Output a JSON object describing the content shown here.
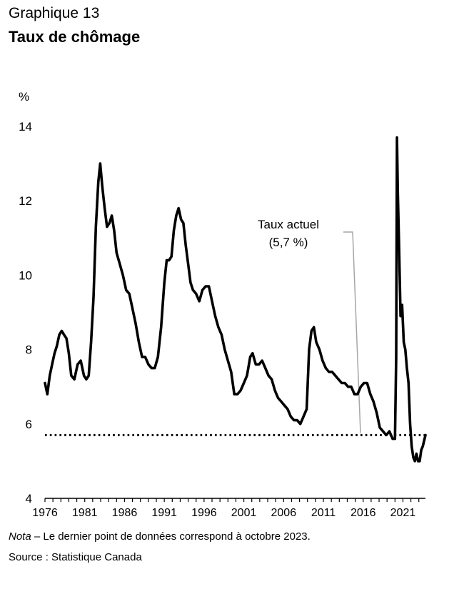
{
  "header": {
    "kicker": "Graphique 13",
    "title": "Taux de chômage"
  },
  "footer": {
    "note_label": "Nota",
    "note_text": " – Le dernier point de données correspond à octobre 2023.",
    "source": "Source : Statistique Canada"
  },
  "chart_data": {
    "type": "line",
    "ylabel": "%",
    "ylim": [
      4,
      14
    ],
    "yticks": [
      4,
      6,
      8,
      10,
      12,
      14
    ],
    "xlim": [
      1976.0,
      2023.83
    ],
    "xticks": [
      1976,
      1981,
      1986,
      1991,
      1996,
      2001,
      2006,
      2011,
      2016,
      2021
    ],
    "grid": false,
    "reference_line": {
      "value": 5.7,
      "style": "dotted"
    },
    "annotation": {
      "line1": "Taux actuel",
      "line2": "(5,7 %)"
    },
    "series": [
      {
        "x": [
          1976.0,
          1976.3,
          1976.6,
          1976.9,
          1977.2,
          1977.5,
          1977.8,
          1978.1,
          1978.4,
          1978.7,
          1979.0,
          1979.3,
          1979.7,
          1980.1,
          1980.5,
          1980.9,
          1981.2,
          1981.5,
          1981.8,
          1982.1,
          1982.4,
          1982.7,
          1982.95,
          1983.2,
          1983.5,
          1983.8,
          1984.1,
          1984.4,
          1984.7,
          1985.0,
          1985.4,
          1985.8,
          1986.2,
          1986.6,
          1987.0,
          1987.4,
          1987.8,
          1988.2,
          1988.6,
          1989.0,
          1989.4,
          1989.8,
          1990.2,
          1990.6,
          1991.0,
          1991.3,
          1991.6,
          1991.9,
          1992.2,
          1992.5,
          1992.8,
          1993.1,
          1993.4,
          1993.7,
          1994.0,
          1994.3,
          1994.6,
          1995.0,
          1995.4,
          1995.8,
          1996.2,
          1996.6,
          1997.0,
          1997.4,
          1997.8,
          1998.2,
          1998.6,
          1999.0,
          1999.4,
          1999.8,
          2000.2,
          2000.6,
          2001.0,
          2001.4,
          2001.8,
          2002.1,
          2002.5,
          2002.9,
          2003.3,
          2003.7,
          2004.1,
          2004.5,
          2004.9,
          2005.3,
          2005.7,
          2006.1,
          2006.5,
          2006.9,
          2007.3,
          2007.7,
          2008.1,
          2008.5,
          2008.9,
          2009.2,
          2009.5,
          2009.8,
          2010.1,
          2010.5,
          2010.9,
          2011.3,
          2011.7,
          2012.1,
          2012.5,
          2012.9,
          2013.3,
          2013.7,
          2014.1,
          2014.5,
          2014.9,
          2015.3,
          2015.7,
          2016.1,
          2016.5,
          2016.9,
          2017.3,
          2017.7,
          2018.1,
          2018.5,
          2018.9,
          2019.3,
          2019.7,
          2020.0,
          2020.15,
          2020.25,
          2020.35,
          2020.5,
          2020.7,
          2020.9,
          2021.1,
          2021.3,
          2021.5,
          2021.7,
          2021.9,
          2022.1,
          2022.3,
          2022.5,
          2022.7,
          2022.9,
          2023.1,
          2023.3,
          2023.5,
          2023.83
        ],
        "y": [
          7.1,
          6.8,
          7.3,
          7.6,
          7.9,
          8.1,
          8.4,
          8.5,
          8.4,
          8.3,
          7.9,
          7.3,
          7.2,
          7.6,
          7.7,
          7.3,
          7.2,
          7.3,
          8.2,
          9.4,
          11.3,
          12.5,
          13.0,
          12.4,
          11.8,
          11.3,
          11.4,
          11.6,
          11.2,
          10.6,
          10.3,
          10.0,
          9.6,
          9.5,
          9.1,
          8.7,
          8.2,
          7.8,
          7.8,
          7.6,
          7.5,
          7.5,
          7.8,
          8.6,
          9.8,
          10.4,
          10.4,
          10.5,
          11.2,
          11.6,
          11.8,
          11.5,
          11.4,
          10.8,
          10.3,
          9.8,
          9.6,
          9.5,
          9.3,
          9.6,
          9.7,
          9.7,
          9.3,
          8.9,
          8.6,
          8.4,
          8.0,
          7.7,
          7.4,
          6.8,
          6.8,
          6.9,
          7.1,
          7.3,
          7.8,
          7.9,
          7.6,
          7.6,
          7.7,
          7.5,
          7.3,
          7.2,
          6.9,
          6.7,
          6.6,
          6.5,
          6.4,
          6.2,
          6.1,
          6.1,
          6.0,
          6.2,
          6.4,
          8.0,
          8.5,
          8.6,
          8.2,
          8.0,
          7.7,
          7.5,
          7.4,
          7.4,
          7.3,
          7.2,
          7.1,
          7.1,
          7.0,
          7.0,
          6.8,
          6.8,
          7.0,
          7.1,
          7.1,
          6.8,
          6.6,
          6.3,
          5.9,
          5.8,
          5.7,
          5.8,
          5.6,
          5.6,
          7.8,
          13.7,
          12.3,
          10.9,
          8.9,
          9.2,
          8.2,
          8.0,
          7.5,
          7.1,
          6.0,
          5.4,
          5.1,
          5.0,
          5.2,
          5.0,
          5.0,
          5.3,
          5.4,
          5.7
        ]
      }
    ]
  }
}
